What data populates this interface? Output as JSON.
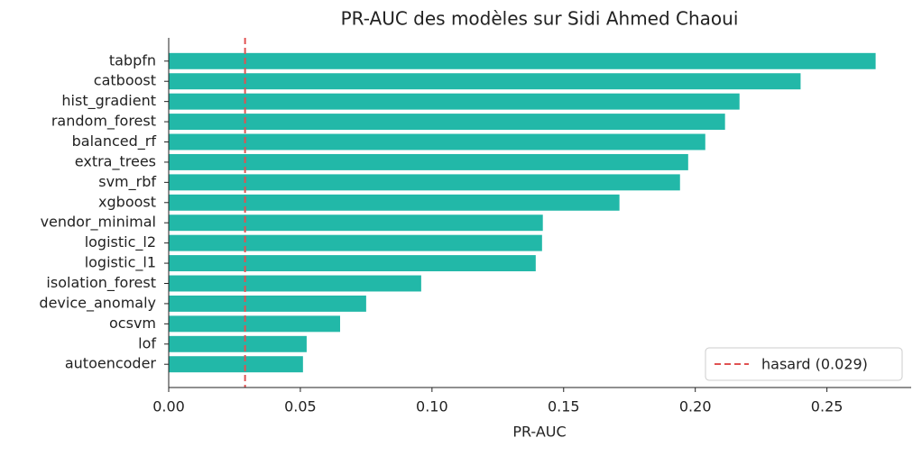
{
  "chart_data": {
    "type": "barh",
    "title": "PR-AUC des modèles sur Sidi Ahmed Chaoui",
    "xlabel": "PR-AUC",
    "categories": [
      "tabpfn",
      "catboost",
      "hist_gradient",
      "random_forest",
      "balanced_rf",
      "extra_trees",
      "svm_rbf",
      "xgboost",
      "vendor_minimal",
      "logistic_l2",
      "logistic_l1",
      "isolation_forest",
      "device_anomaly",
      "ocsvm",
      "lof",
      "autoencoder"
    ],
    "values": [
      0.2685,
      0.24,
      0.2168,
      0.2113,
      0.2038,
      0.1973,
      0.1942,
      0.1712,
      0.1421,
      0.1418,
      0.1394,
      0.0959,
      0.075,
      0.0651,
      0.0524,
      0.051
    ],
    "color": "#22b8a8",
    "xlim": [
      0,
      0.282
    ],
    "xticks": [
      {
        "value": 0,
        "label": "0.00"
      },
      {
        "value": 0.05,
        "label": "0.05"
      },
      {
        "value": 0.1,
        "label": "0.10"
      },
      {
        "value": 0.15,
        "label": "0.15"
      },
      {
        "value": 0.2,
        "label": "0.20"
      },
      {
        "value": 0.25,
        "label": "0.25"
      }
    ],
    "reference_line": {
      "value": 0.029,
      "label": "hasard (0.029)",
      "color": "#e05252"
    },
    "legend_position": "lower right"
  }
}
